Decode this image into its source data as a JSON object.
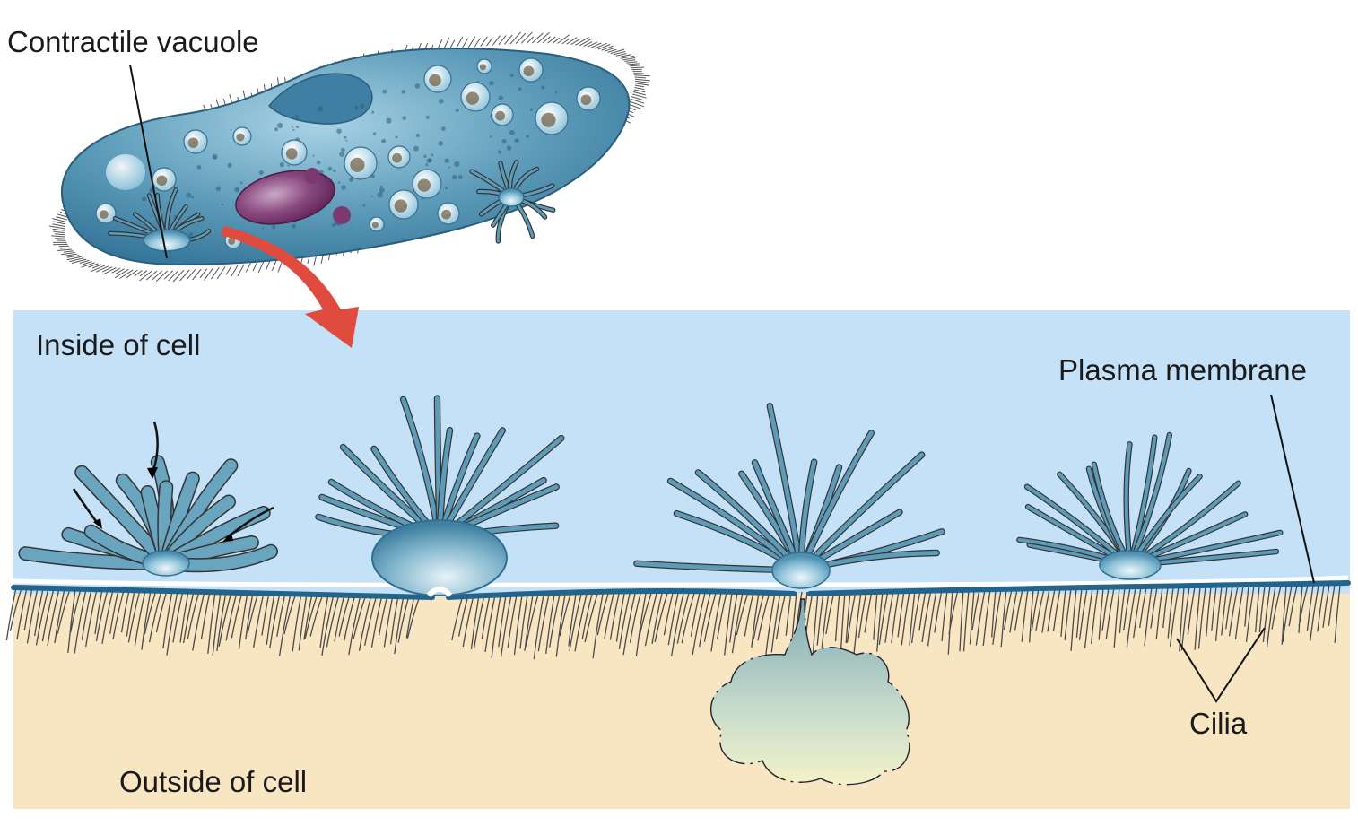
{
  "labels": {
    "contractile_vacuole": "Contractile vacuole",
    "inside_of_cell": "Inside of cell",
    "plasma_membrane": "Plasma membrane",
    "cilia": "Cilia",
    "outside_of_cell": "Outside of cell"
  },
  "colors": {
    "inside": "#c4e1f7",
    "outside": "#f8e5c2",
    "cell_body": "#4d8fb0",
    "membrane": "#23648c",
    "nucleus": "#6d2c63",
    "arrow": "#e04b40",
    "cilia": "#444444"
  }
}
